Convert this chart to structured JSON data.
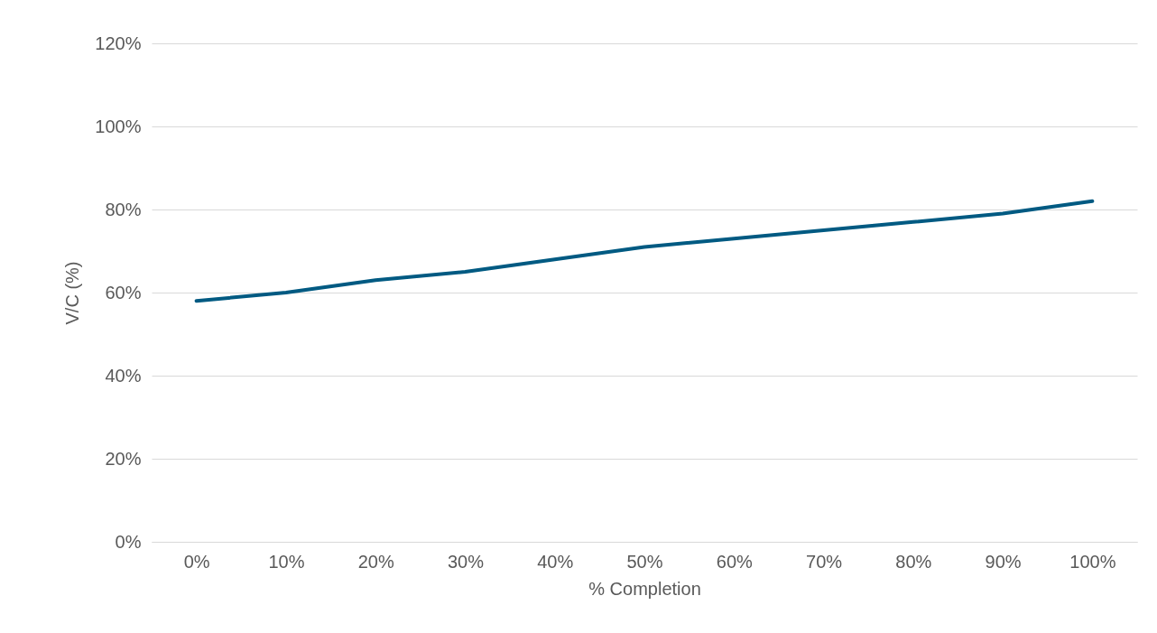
{
  "chart_data": {
    "type": "line",
    "xlabel": "% Completion",
    "ylabel": "V/C (%)",
    "categories": [
      "0%",
      "10%",
      "20%",
      "30%",
      "40%",
      "50%",
      "60%",
      "70%",
      "80%",
      "90%",
      "100%"
    ],
    "series": [
      {
        "color": "#005a82",
        "values": [
          58,
          60,
          63,
          65,
          68,
          71,
          73,
          75,
          77,
          79,
          82
        ]
      }
    ],
    "ylim": [
      0,
      120
    ],
    "yticks": [
      {
        "value": 0,
        "label": "0%"
      },
      {
        "value": 20,
        "label": "20%"
      },
      {
        "value": 40,
        "label": "40%"
      },
      {
        "value": 60,
        "label": "60%"
      },
      {
        "value": 80,
        "label": "80%"
      },
      {
        "value": 100,
        "label": "100%"
      },
      {
        "value": 120,
        "label": "120%"
      }
    ],
    "grid": "y",
    "marker": "none",
    "line_style": "solid"
  }
}
